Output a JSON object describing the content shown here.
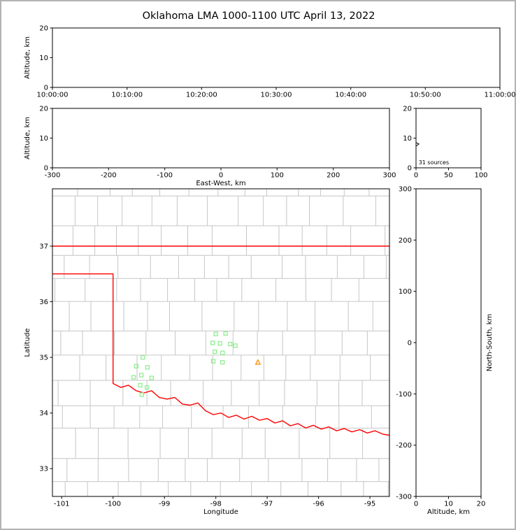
{
  "title": "Oklahoma LMA 1000-1100 UTC April 13, 2022",
  "colors": {
    "background": "#ffffff",
    "frame_border": "#b3b3b3",
    "axis": "#000000",
    "county_line": "#c6c6c6",
    "state_border": "#ff0000",
    "station_marker": "#90ee90",
    "center_marker": "#ff8c00",
    "histogram_line": "#000000"
  },
  "chart_data": [
    {
      "id": "time_height",
      "type": "scatter",
      "ylabel": "Altitude, km",
      "xlim": [
        0,
        3600
      ],
      "ylim": [
        0,
        20
      ],
      "xtick_values": [
        0,
        600,
        1200,
        1800,
        2400,
        3000,
        3600
      ],
      "xtick_labels": [
        "10:00:00",
        "10:10:00",
        "10:20:00",
        "10:30:00",
        "10:40:00",
        "10:50:00",
        "11:00:00"
      ],
      "ytick_values": [
        0,
        10,
        20
      ],
      "ytick_labels": [
        "0",
        "10",
        "20"
      ],
      "points": []
    },
    {
      "id": "ew_height",
      "type": "scatter",
      "xlabel": "East-West, km",
      "ylabel": "Altitude, km",
      "xlim": [
        -300,
        300
      ],
      "ylim": [
        0,
        20
      ],
      "xtick_values": [
        -300,
        -200,
        -100,
        0,
        100,
        200,
        300
      ],
      "xtick_labels": [
        "-300",
        "-200",
        "-100",
        "0",
        "100",
        "200",
        "300"
      ],
      "ytick_values": [
        0,
        10,
        20
      ],
      "ytick_labels": [
        "0",
        "10",
        "20"
      ],
      "points": []
    },
    {
      "id": "alt_histogram",
      "type": "line",
      "xlim": [
        0,
        100
      ],
      "ylim": [
        0,
        20
      ],
      "xtick_values": [
        0,
        50,
        100
      ],
      "xtick_labels": [
        "0",
        "50",
        "100"
      ],
      "ytick_values": [
        0,
        10,
        20
      ],
      "ytick_labels": [
        "0",
        "10",
        "20"
      ],
      "annotation": {
        "text": "31 sources",
        "x": 4,
        "y": 1.2
      },
      "profile": [
        [
          0,
          8.5
        ],
        [
          4.5,
          8.0
        ],
        [
          0,
          7.3
        ]
      ]
    },
    {
      "id": "plan_view",
      "type": "scatter",
      "xlabel": "Longitude",
      "ylabel": "Latitude",
      "xlim": [
        -101.18,
        -94.62
      ],
      "ylim": [
        32.5,
        38.03
      ],
      "xtick_values": [
        -101,
        -100,
        -99,
        -98,
        -97,
        -96,
        -95
      ],
      "xtick_labels": [
        "-101",
        "-100",
        "-99",
        "-98",
        "-97",
        "-96",
        "-95"
      ],
      "ytick_values": [
        33,
        34,
        35,
        36,
        37
      ],
      "ytick_labels": [
        "33",
        "34",
        "35",
        "36",
        "37"
      ],
      "county_grid": {
        "seed": 9,
        "row_min": 0.4,
        "row_var": 0.15,
        "col_min": 0.42,
        "col_var": 0.25
      },
      "state_border": [
        [
          [
            -101.18,
            37.0
          ],
          [
            -94.62,
            37.0
          ]
        ],
        [
          [
            -101.18,
            36.5
          ],
          [
            -100.0,
            36.5
          ],
          [
            -100.0,
            34.53
          ],
          [
            -99.85,
            34.46
          ],
          [
            -99.7,
            34.5
          ],
          [
            -99.55,
            34.4
          ],
          [
            -99.4,
            34.36
          ],
          [
            -99.25,
            34.4
          ],
          [
            -99.1,
            34.28
          ],
          [
            -98.95,
            34.25
          ],
          [
            -98.8,
            34.28
          ],
          [
            -98.65,
            34.16
          ],
          [
            -98.5,
            34.14
          ],
          [
            -98.35,
            34.18
          ],
          [
            -98.2,
            34.04
          ],
          [
            -98.05,
            33.97
          ],
          [
            -97.9,
            34.0
          ],
          [
            -97.75,
            33.92
          ],
          [
            -97.6,
            33.96
          ],
          [
            -97.45,
            33.89
          ],
          [
            -97.3,
            33.94
          ],
          [
            -97.15,
            33.87
          ],
          [
            -97.0,
            33.9
          ],
          [
            -96.85,
            33.82
          ],
          [
            -96.7,
            33.86
          ],
          [
            -96.55,
            33.77
          ],
          [
            -96.4,
            33.81
          ],
          [
            -96.25,
            33.73
          ],
          [
            -96.1,
            33.78
          ],
          [
            -95.95,
            33.71
          ],
          [
            -95.8,
            33.75
          ],
          [
            -95.65,
            33.68
          ],
          [
            -95.5,
            33.72
          ],
          [
            -95.35,
            33.66
          ],
          [
            -95.2,
            33.7
          ],
          [
            -95.05,
            33.64
          ],
          [
            -94.9,
            33.68
          ],
          [
            -94.75,
            33.62
          ],
          [
            -94.62,
            33.6
          ]
        ]
      ],
      "stations": [
        [
          -99.42,
          35.0
        ],
        [
          -99.55,
          34.84
        ],
        [
          -99.33,
          34.82
        ],
        [
          -99.45,
          34.68
        ],
        [
          -99.6,
          34.64
        ],
        [
          -99.25,
          34.63
        ],
        [
          -99.47,
          34.5
        ],
        [
          -99.34,
          34.46
        ],
        [
          -99.44,
          34.33
        ],
        [
          -98.0,
          35.42
        ],
        [
          -97.81,
          35.43
        ],
        [
          -98.06,
          35.26
        ],
        [
          -97.92,
          35.25
        ],
        [
          -97.72,
          35.24
        ],
        [
          -97.62,
          35.21
        ],
        [
          -98.02,
          35.1
        ],
        [
          -97.87,
          35.08
        ],
        [
          -98.05,
          34.93
        ],
        [
          -97.87,
          34.91
        ]
      ],
      "center_marker": [
        -97.18,
        34.91
      ]
    },
    {
      "id": "ns_height",
      "type": "scatter",
      "xlabel": "Altitude, km",
      "ylabel_right": "North-South, km",
      "xlim": [
        0,
        20
      ],
      "ylim": [
        -300,
        300
      ],
      "xtick_values": [
        0,
        10,
        20
      ],
      "xtick_labels": [
        "0",
        "10",
        "20"
      ],
      "ytick_values": [
        -300,
        -200,
        -100,
        0,
        100,
        200,
        300
      ],
      "ytick_labels": [
        "-300",
        "-200",
        "-100",
        "0",
        "100",
        "200",
        "300"
      ],
      "points": []
    }
  ]
}
